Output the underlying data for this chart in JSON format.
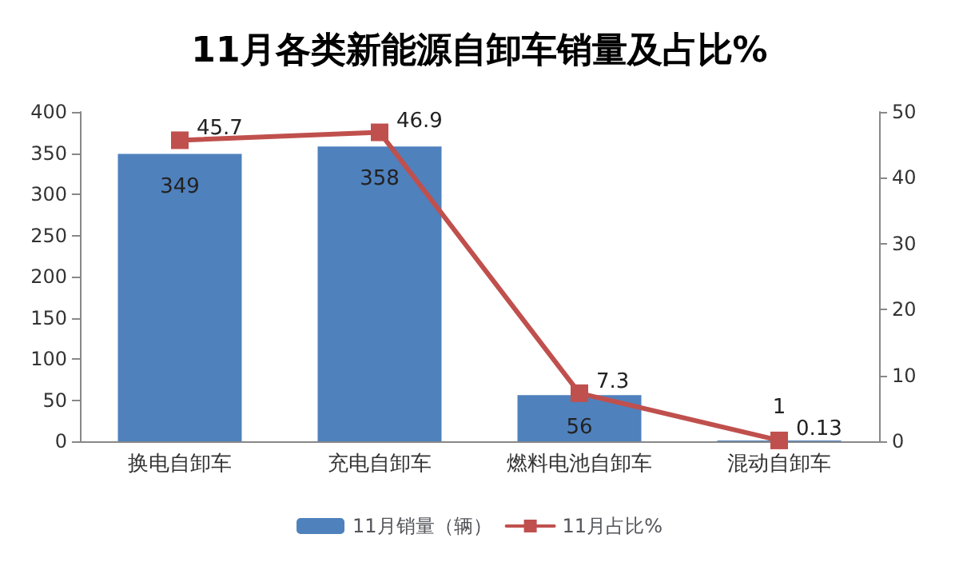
{
  "chart_data": {
    "type": "bar",
    "title": "11月各类新能源自卸车销量及占比%",
    "categories": [
      "换电自卸车",
      "充电自卸车",
      "燃料电池自卸车",
      "混动自卸车"
    ],
    "series": [
      {
        "name": "11月销量（辆）",
        "color": "#4f81bd",
        "values": [
          349,
          358,
          56,
          1
        ]
      },
      {
        "name": "11月占比%",
        "type": "line",
        "axis": "y2",
        "color": "#c0504d",
        "values": [
          45.7,
          46.9,
          7.3,
          0.13
        ]
      }
    ],
    "ylim": [
      0,
      400
    ],
    "yticks": [
      0,
      50,
      100,
      150,
      200,
      250,
      300,
      350,
      400
    ],
    "y2lim": [
      0,
      50
    ],
    "y2ticks": [
      0,
      10,
      20,
      30,
      40,
      50
    ],
    "data_labels": true,
    "legend": "bottom",
    "grid": false,
    "marker": "square",
    "line_style": "solid"
  }
}
